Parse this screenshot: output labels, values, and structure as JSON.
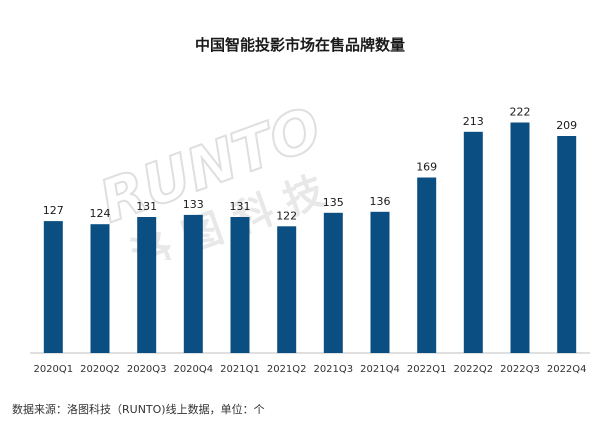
{
  "title": "中国智能投影市场在售品牌数量",
  "source_note": "数据来源：洛图科技（RUNTO)线上数据，单位：个",
  "watermark": {
    "latin": "RUNTO",
    "cjk": [
      "洛",
      "图",
      "科",
      "技"
    ]
  },
  "colors": {
    "bar": "#0b4f82",
    "text": "#1a1a1a",
    "axis": "#bfbfbf",
    "watermark": "#e3e3e3"
  },
  "chart_data": {
    "type": "bar",
    "categories": [
      "2020Q1",
      "2020Q2",
      "2020Q3",
      "2020Q4",
      "2021Q1",
      "2021Q2",
      "2021Q3",
      "2021Q4",
      "2022Q1",
      "2022Q2",
      "2022Q3",
      "2022Q4"
    ],
    "values": [
      127,
      124,
      131,
      133,
      131,
      122,
      135,
      136,
      169,
      213,
      222,
      209
    ],
    "title": "中国智能投影市场在售品牌数量",
    "xlabel": "",
    "ylabel": "",
    "ylim": [
      0,
      234
    ],
    "grid": false,
    "data_labels": true
  }
}
